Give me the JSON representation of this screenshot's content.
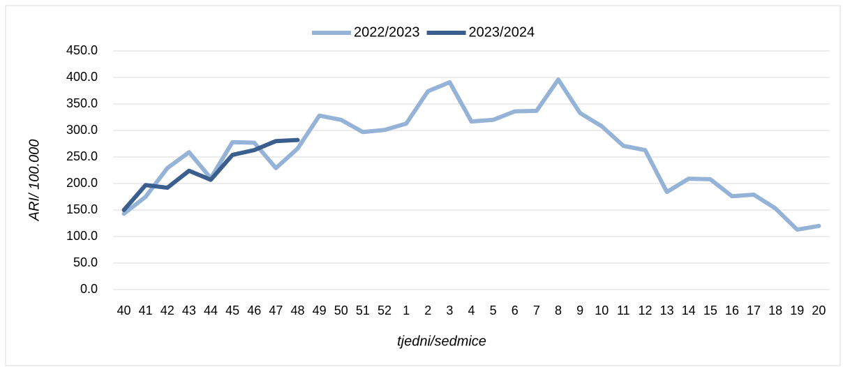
{
  "chart_data": {
    "type": "line",
    "categories": [
      "40",
      "41",
      "42",
      "43",
      "44",
      "45",
      "46",
      "47",
      "48",
      "49",
      "50",
      "51",
      "52",
      "1",
      "2",
      "3",
      "4",
      "5",
      "6",
      "7",
      "8",
      "9",
      "10",
      "11",
      "12",
      "13",
      "14",
      "15",
      "16",
      "17",
      "18",
      "19",
      "20"
    ],
    "series": [
      {
        "name": "2022/2023",
        "color": "#95b3d7",
        "values": [
          143,
          175,
          229,
          259,
          210,
          278,
          277,
          229,
          266,
          328,
          320,
          297,
          301,
          313,
          374,
          391,
          317,
          320,
          336,
          337,
          396,
          333,
          308,
          271,
          263,
          184,
          209,
          208,
          176,
          179,
          153,
          113,
          120
        ]
      },
      {
        "name": "2023/2024",
        "color": "#3a5f8f",
        "values": [
          150,
          197,
          192,
          224,
          207,
          254,
          263,
          280,
          282,
          null,
          null,
          null,
          null,
          null,
          null,
          null,
          null,
          null,
          null,
          null,
          null,
          null,
          null,
          null,
          null,
          null,
          null,
          null,
          null,
          null,
          null,
          null,
          null
        ]
      }
    ],
    "ylim": [
      0,
      450
    ],
    "yticks": [
      {
        "value": 0,
        "label": "0.0"
      },
      {
        "value": 50,
        "label": "50.0"
      },
      {
        "value": 100,
        "label": "100.0"
      },
      {
        "value": 150,
        "label": "150.0"
      },
      {
        "value": 200,
        "label": "200.0"
      },
      {
        "value": 250,
        "label": "250.0"
      },
      {
        "value": 300,
        "label": "300.0"
      },
      {
        "value": 350,
        "label": "350.0"
      },
      {
        "value": 400,
        "label": "400.0"
      },
      {
        "value": 450,
        "label": "450.0"
      }
    ],
    "ylabel": "ARI/ 100.000",
    "xlabel": "tjedni/sedmice",
    "grid": true,
    "legend": "top"
  }
}
